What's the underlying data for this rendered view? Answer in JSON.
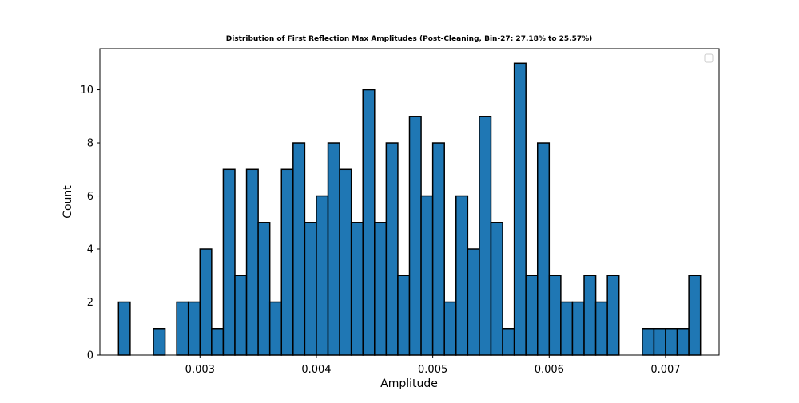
{
  "colors": {
    "bar_fill": "#1f77b4",
    "bar_edge": "#000000",
    "axes": "#000000",
    "background": "#ffffff"
  },
  "chart_data": {
    "type": "bar",
    "title": "Distribution of First Reflection Max Amplitudes (Post-Cleaning, Bin-27: 27.18% to 25.57%)",
    "xlabel": "Amplitude",
    "ylabel": "Count",
    "xlim": [
      0.00214,
      0.00746
    ],
    "ylim": [
      0,
      11.55
    ],
    "x_ticks": [
      0.003,
      0.004,
      0.005,
      0.006,
      0.007
    ],
    "x_tick_labels": [
      "0.003",
      "0.004",
      "0.005",
      "0.006",
      "0.007"
    ],
    "y_ticks": [
      0,
      2,
      4,
      6,
      8,
      10
    ],
    "y_tick_labels": [
      "0",
      "2",
      "4",
      "6",
      "8",
      "10"
    ],
    "grid": false,
    "legend": {
      "location": "upper right",
      "entries": []
    },
    "bins": {
      "start": 0.0023,
      "width": 0.0001,
      "counts": [
        2,
        0,
        0,
        1,
        0,
        2,
        2,
        4,
        1,
        7,
        3,
        7,
        5,
        2,
        7,
        8,
        5,
        6,
        8,
        7,
        5,
        10,
        5,
        8,
        3,
        9,
        6,
        8,
        2,
        6,
        4,
        9,
        5,
        1,
        11,
        3,
        8,
        3,
        2,
        2,
        3,
        2,
        3,
        0,
        0,
        1,
        1,
        1,
        1,
        3
      ]
    }
  }
}
